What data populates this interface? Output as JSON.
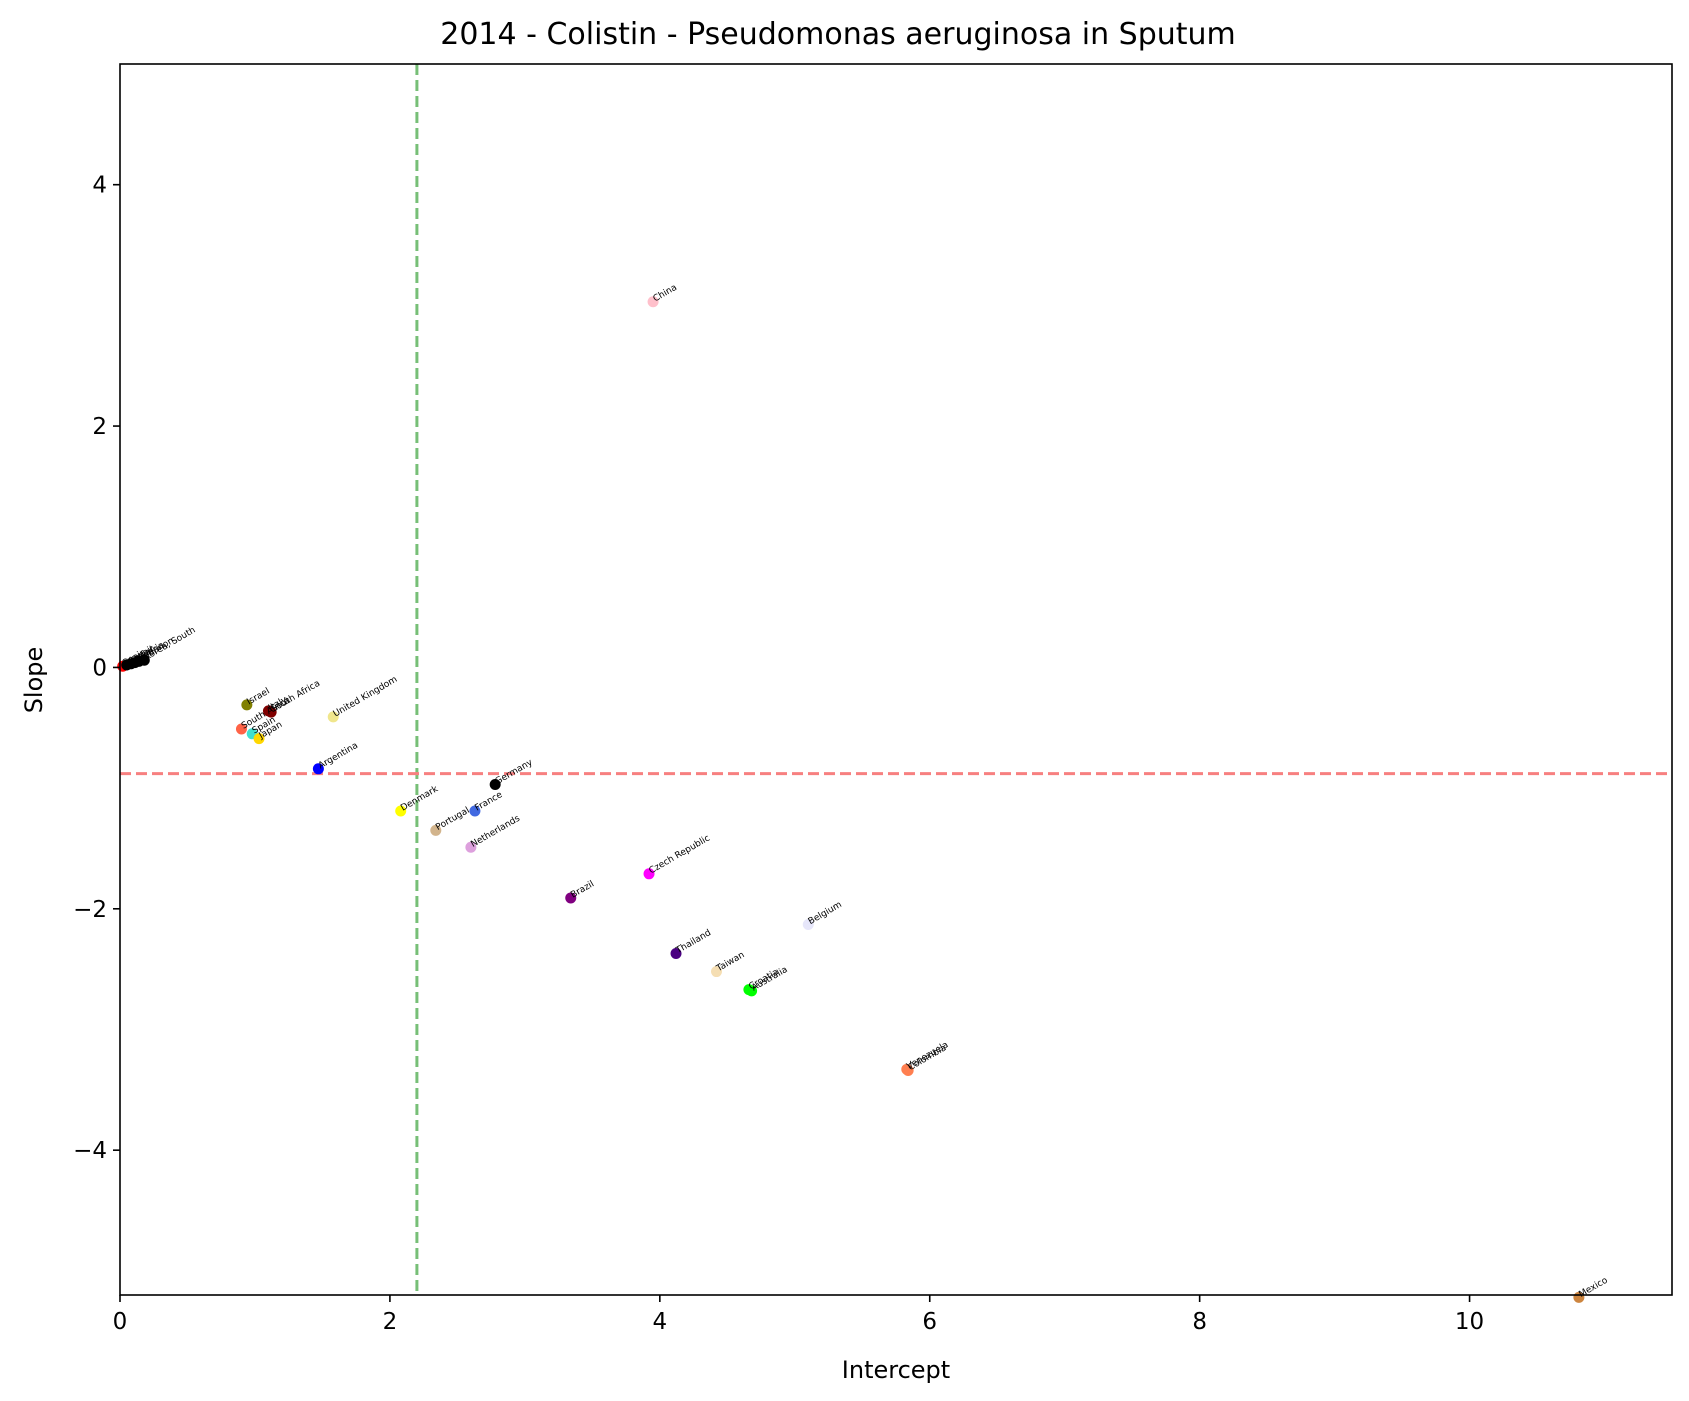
{
  "chart_data": {
    "type": "scatter",
    "title": "2014 - Colistin - Pseudomonas aeruginosa in Sputum",
    "xlabel": "Intercept",
    "ylabel": "Slope",
    "xlim": [
      0,
      11.5
    ],
    "ylim": [
      -5.2,
      5.0
    ],
    "xticks": [
      0,
      2,
      4,
      6,
      8,
      10
    ],
    "yticks": [
      -4,
      -2,
      0,
      2,
      4
    ],
    "xtick_labels": [
      "0",
      "2",
      "4",
      "6",
      "8",
      "10"
    ],
    "ytick_labels": [
      "−4",
      "−2",
      "0",
      "2",
      "4"
    ],
    "grid": false,
    "reference_lines": [
      {
        "orientation": "vertical",
        "value": 2.2,
        "color": "#77bf77",
        "style": "dashed"
      },
      {
        "orientation": "horizontal",
        "value": -0.88,
        "color": "#f78080",
        "style": "dashed"
      }
    ],
    "points": [
      {
        "name": "China",
        "x": 3.95,
        "y": 3.03,
        "color": "#ffc0cb"
      },
      {
        "name": "Spain",
        "x": 0.02,
        "y": 0.01,
        "color": "#ff0000"
      },
      {
        "name": "Kuwait",
        "x": 0.05,
        "y": 0.02,
        "color": "#000000"
      },
      {
        "name": "Qatar",
        "x": 0.08,
        "y": 0.03,
        "color": "#000000"
      },
      {
        "name": "Nigeria",
        "x": 0.11,
        "y": 0.04,
        "color": "#000000"
      },
      {
        "name": "Lebanon",
        "x": 0.14,
        "y": 0.05,
        "color": "#000000"
      },
      {
        "name": "Korea, South",
        "x": 0.18,
        "y": 0.06,
        "color": "#000000"
      },
      {
        "name": "Israel",
        "x": 0.94,
        "y": -0.31,
        "color": "#808000"
      },
      {
        "name": "South Africa",
        "x": 1.12,
        "y": -0.37,
        "color": "#800000"
      },
      {
        "name": "Italy",
        "x": 1.1,
        "y": -0.36,
        "color": "#800000"
      },
      {
        "name": "South Africa",
        "x": 0.9,
        "y": -0.51,
        "color": "#ff6347"
      },
      {
        "name": "Spain",
        "x": 0.98,
        "y": -0.55,
        "color": "#40e0d0"
      },
      {
        "name": "Japan",
        "x": 1.03,
        "y": -0.59,
        "color": "#ffd700"
      },
      {
        "name": "United Kingdom",
        "x": 1.58,
        "y": -0.41,
        "color": "#f0e68c"
      },
      {
        "name": "Argentina",
        "x": 1.47,
        "y": -0.84,
        "color": "#0000ff"
      },
      {
        "name": "Germany",
        "x": 2.78,
        "y": -0.97,
        "color": "#000000"
      },
      {
        "name": "Denmark",
        "x": 2.08,
        "y": -1.19,
        "color": "#ffff00"
      },
      {
        "name": "France",
        "x": 2.63,
        "y": -1.19,
        "color": "#4169e1"
      },
      {
        "name": "Portugal",
        "x": 2.34,
        "y": -1.35,
        "color": "#d2b48c"
      },
      {
        "name": "Netherlands",
        "x": 2.6,
        "y": -1.49,
        "color": "#dda0dd"
      },
      {
        "name": "Czech Republic",
        "x": 3.92,
        "y": -1.71,
        "color": "#ff00ff"
      },
      {
        "name": "Brazil",
        "x": 3.34,
        "y": -1.91,
        "color": "#800080"
      },
      {
        "name": "Belgium",
        "x": 5.1,
        "y": -2.13,
        "color": "#e6e6fa"
      },
      {
        "name": "Thailand",
        "x": 4.12,
        "y": -2.37,
        "color": "#4b0082"
      },
      {
        "name": "Taiwan",
        "x": 4.42,
        "y": -2.52,
        "color": "#f5deb3"
      },
      {
        "name": "Australia",
        "x": 4.68,
        "y": -2.68,
        "color": "#00ff00"
      },
      {
        "name": "Croatia",
        "x": 4.66,
        "y": -2.67,
        "color": "#00ff00"
      },
      {
        "name": "Colombia",
        "x": 5.84,
        "y": -3.34,
        "color": "#ff7f50"
      },
      {
        "name": "Venezuela",
        "x": 5.83,
        "y": -3.33,
        "color": "#ff7f50"
      },
      {
        "name": "Mexico",
        "x": 10.81,
        "y": -5.22,
        "color": "#cd853f"
      }
    ]
  }
}
